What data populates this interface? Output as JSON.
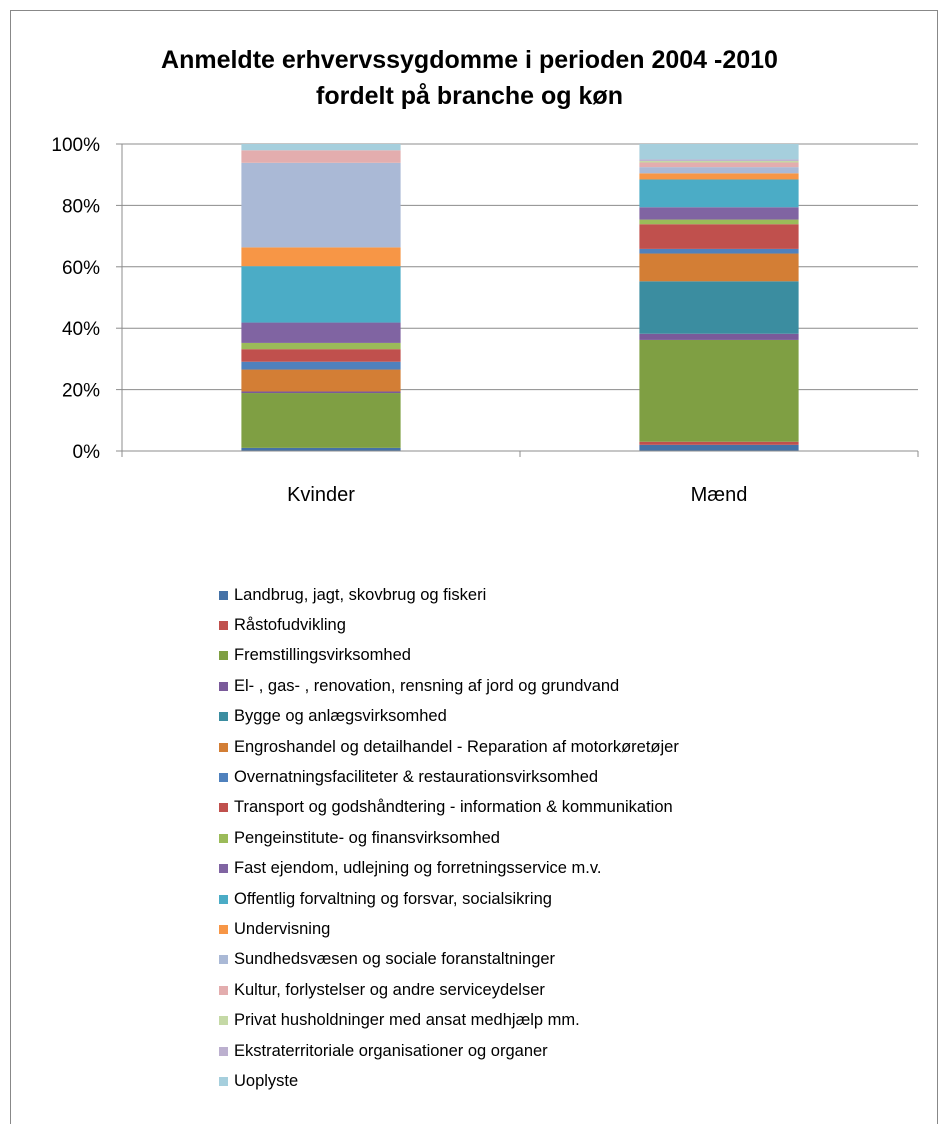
{
  "chart_data": {
    "type": "bar",
    "stacked": true,
    "percent": true,
    "title": [
      "Anmeldte erhvervssygdomme  i perioden 2004 -2010",
      "fordelt på branche og køn"
    ],
    "categories": [
      "Kvinder",
      "Mænd"
    ],
    "ylim": [
      0,
      100
    ],
    "yticks": [
      "0%",
      "20%",
      "40%",
      "60%",
      "80%",
      "100%"
    ],
    "grid": true,
    "legend_position": "bottom",
    "series": [
      {
        "name": "Landbrug, jagt, skovbrug og fiskeri",
        "color": "#4572A7",
        "values": [
          1,
          2
        ]
      },
      {
        "name": "Råstofudvikling",
        "color": "#C0504D",
        "values": [
          0,
          1
        ]
      },
      {
        "name": "Fremstillingsvirksomhed",
        "color": "#7F9F43",
        "values": [
          17.5,
          33
        ]
      },
      {
        "name": "El- , gas- , renovation, rensning af jord og grundvand",
        "color": "#7A5A9A",
        "values": [
          0.5,
          2
        ]
      },
      {
        "name": "Bygge og anlægsvirksomhed",
        "color": "#3B8DA0",
        "values": [
          0,
          17
        ]
      },
      {
        "name": "Engroshandel og detailhandel - Reparation af motorkøretøjer",
        "color": "#D37E35",
        "values": [
          7,
          9
        ]
      },
      {
        "name": "Overnatningsfaciliteter & restaurationsvirksomhed",
        "color": "#4F81BD",
        "values": [
          2.5,
          1.5
        ]
      },
      {
        "name": "Transport og godshåndtering - information & kommunikation",
        "color": "#C0504D",
        "values": [
          4,
          8
        ]
      },
      {
        "name": "Pengeinstitute- og finansvirksomhed",
        "color": "#9BBB59",
        "values": [
          2,
          1.5
        ]
      },
      {
        "name": "Fast ejendom, udlejning og forretningsservice m.v.",
        "color": "#8064A2",
        "values": [
          6.5,
          4
        ]
      },
      {
        "name": "Offentlig forvaltning og forsvar, socialsikring",
        "color": "#4BACC6",
        "values": [
          18,
          9
        ]
      },
      {
        "name": "Undervisning",
        "color": "#F79646",
        "values": [
          6,
          2
        ]
      },
      {
        "name": "Sundhedsvæsen og sociale foranstaltninger",
        "color": "#AAB9D6",
        "values": [
          27,
          2
        ]
      },
      {
        "name": "Kultur, forlystelser og andre serviceydelser",
        "color": "#E3ADAE",
        "values": [
          4,
          1.5
        ]
      },
      {
        "name": "Privat husholdninger med ansat medhjælp mm.",
        "color": "#C5D9A6",
        "values": [
          0,
          0.5
        ]
      },
      {
        "name": "Ekstraterritoriale organisationer og organer",
        "color": "#BCB0CF",
        "values": [
          0,
          0.5
        ]
      },
      {
        "name": "Uoplyste",
        "color": "#A6CFDD",
        "values": [
          2,
          5
        ]
      }
    ]
  }
}
